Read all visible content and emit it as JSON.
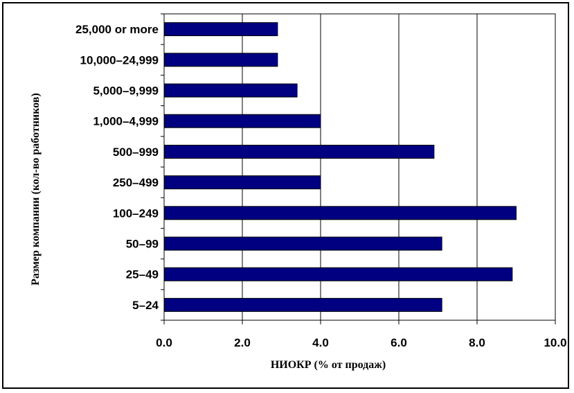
{
  "chart_data": {
    "type": "bar",
    "orientation": "horizontal",
    "categories": [
      "5–24",
      "25–49",
      "50–99",
      "100–249",
      "250–499",
      "500–999",
      "1,000–4,999",
      "5,000–9,999",
      "10,000–24,999",
      "25,000 or more"
    ],
    "values": [
      7.1,
      8.9,
      7.1,
      9.0,
      4.0,
      6.9,
      4.0,
      3.4,
      2.9,
      2.9
    ],
    "xlabel": "НИОКР (% от продаж)",
    "ylabel": "Размер компании (кол-во работников)",
    "xlim": [
      0,
      10
    ],
    "xticks": [
      "0.0",
      "2.0",
      "4.0",
      "6.0",
      "8.0",
      "10.0"
    ],
    "grid": "vertical",
    "bar_color": "#000080"
  }
}
